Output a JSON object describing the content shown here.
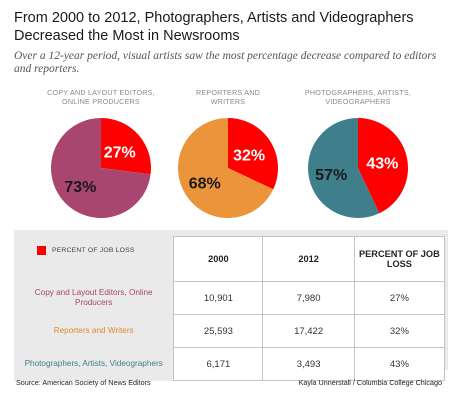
{
  "header": {
    "title": "From 2000 to 2012, Photographers, Artists and Videographers Decreased the Most in Newsrooms",
    "subtitle": "Over a 12-year period, visual artists saw the most percentage decrease compared to editors and reporters."
  },
  "chart_data": [
    {
      "type": "pie",
      "title": "COPY AND LAYOUT EDITORS,\nONLINE PRODUCERS",
      "slices": [
        {
          "label": "27%",
          "value": 27,
          "color": "#ff0000"
        },
        {
          "label": "73%",
          "value": 73,
          "color": "#a8466f"
        }
      ]
    },
    {
      "type": "pie",
      "title": "REPORTERS AND\nWRITERS",
      "slices": [
        {
          "label": "32%",
          "value": 32,
          "color": "#ff0000"
        },
        {
          "label": "68%",
          "value": 68,
          "color": "#ec943a"
        }
      ]
    },
    {
      "type": "pie",
      "title": "PHOTOGRAPHERS, ARTISTS,\nVIDEOGRAPHERS",
      "slices": [
        {
          "label": "43%",
          "value": 43,
          "color": "#ff0000"
        },
        {
          "label": "57%",
          "value": 57,
          "color": "#3f7f8c"
        }
      ]
    },
    {
      "type": "table",
      "legend": "PERCENT OF JOB LOSS",
      "columns": [
        "2000",
        "2012",
        "PERCENT OF JOB LOSS"
      ],
      "rows": [
        {
          "name": "Copy and Layout Editors, Online Producers",
          "color": "#a8466f",
          "cells": [
            "10,901",
            "7,980",
            "27%"
          ]
        },
        {
          "name": "Reporters and Writers",
          "color": "#e08a2c",
          "cells": [
            "25,593",
            "17,422",
            "32%"
          ]
        },
        {
          "name": "Photographers, Artists, Videographers",
          "color": "#3f7f8c",
          "cells": [
            "6,171",
            "3,493",
            "43%"
          ]
        }
      ]
    }
  ],
  "footer": {
    "source": "Source: American Society of News Editors",
    "credit": "Kayla Unnerstall / Columbia College Chicago"
  }
}
